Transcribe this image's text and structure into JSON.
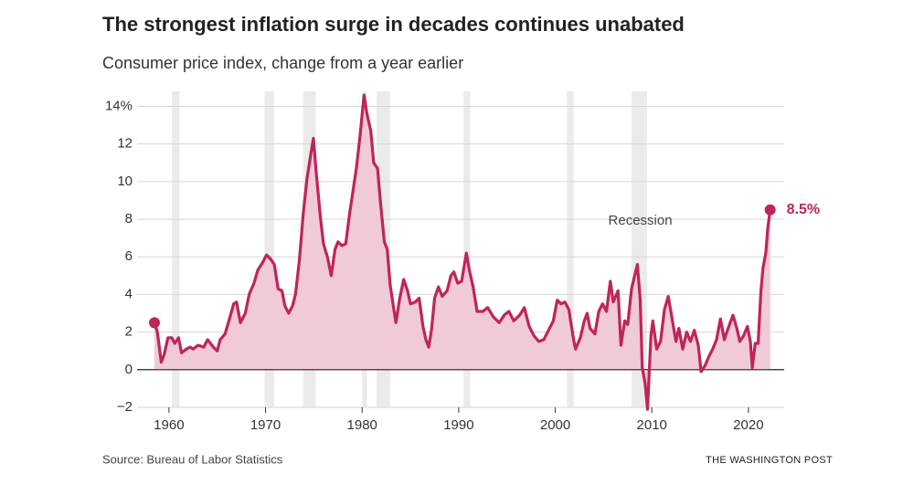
{
  "chart_data": {
    "type": "area-line",
    "title": "The strongest inflation surge in decades continues unabated",
    "subtitle": "Consumer price index, change from a year earlier",
    "source": "Source: Bureau of Labor Statistics",
    "credit": "THE WASHINGTON POST",
    "xlim": [
      1956.7,
      2023.7
    ],
    "xticks": [
      1960,
      1970,
      1980,
      1990,
      2000,
      2010,
      2020
    ],
    "ylim": [
      -2,
      14.8
    ],
    "yticks": [
      {
        "value": -2,
        "label": "−2"
      },
      0,
      2,
      4,
      6,
      8,
      10,
      12,
      {
        "value": 14,
        "label": "14%"
      }
    ],
    "grid": true,
    "recession_color": "#ebebeb",
    "recessions": [
      [
        1960.3,
        1961.1
      ],
      [
        1969.9,
        1970.9
      ],
      [
        1973.9,
        1975.2
      ],
      [
        1980.0,
        1980.5
      ],
      [
        1981.5,
        1982.9
      ],
      [
        1990.5,
        1991.2
      ],
      [
        2001.2,
        2001.9
      ],
      [
        2007.9,
        2009.5
      ]
    ],
    "annotations": [
      {
        "text": "Recession",
        "x": 2008.8,
        "y": 7.9
      },
      {
        "text": "8.5%",
        "x": 2022.25,
        "y": 8.5
      }
    ],
    "series": [
      {
        "name": "Consumer price index",
        "color": "#bf2556",
        "fill": "#f0cad6",
        "x": [
          1958.5,
          1958.8,
          1959.2,
          1959.5,
          1959.9,
          1960.3,
          1960.6,
          1961.0,
          1961.3,
          1961.8,
          1962.2,
          1962.5,
          1963.0,
          1963.6,
          1964.0,
          1964.6,
          1965.0,
          1965.3,
          1965.8,
          1966.2,
          1966.7,
          1967.0,
          1967.4,
          1967.9,
          1968.3,
          1968.8,
          1969.2,
          1969.7,
          1970.1,
          1970.5,
          1970.9,
          1971.3,
          1971.7,
          1972.0,
          1972.4,
          1972.8,
          1973.1,
          1973.5,
          1973.9,
          1974.3,
          1974.7,
          1974.95,
          1975.3,
          1975.7,
          1976.0,
          1976.4,
          1976.8,
          1977.2,
          1977.5,
          1977.9,
          1978.3,
          1978.7,
          1979.0,
          1979.4,
          1979.8,
          1980.2,
          1980.5,
          1980.9,
          1981.2,
          1981.6,
          1981.9,
          1982.3,
          1982.6,
          1982.9,
          1983.2,
          1983.5,
          1983.9,
          1984.3,
          1984.7,
          1985.0,
          1985.5,
          1985.9,
          1986.3,
          1986.6,
          1986.9,
          1987.2,
          1987.5,
          1987.9,
          1988.3,
          1988.8,
          1989.2,
          1989.5,
          1989.9,
          1990.3,
          1990.8,
          1991.1,
          1991.5,
          1991.9,
          1992.5,
          1993.0,
          1993.6,
          1994.2,
          1994.7,
          1995.2,
          1995.7,
          1996.3,
          1996.8,
          1997.3,
          1997.8,
          1998.3,
          1998.8,
          1999.3,
          1999.8,
          2000.2,
          2000.6,
          2001.0,
          2001.4,
          2001.9,
          2002.1,
          2002.6,
          2003.0,
          2003.3,
          2003.6,
          2004.1,
          2004.5,
          2004.9,
          2005.3,
          2005.7,
          2006.0,
          2006.5,
          2006.8,
          2007.2,
          2007.5,
          2007.9,
          2008.5,
          2008.8,
          2009.0,
          2009.3,
          2009.55,
          2009.9,
          2010.1,
          2010.5,
          2010.9,
          2011.3,
          2011.7,
          2012.1,
          2012.5,
          2012.8,
          2013.2,
          2013.6,
          2014.0,
          2014.4,
          2014.8,
          2015.1,
          2015.5,
          2015.9,
          2016.3,
          2016.7,
          2017.1,
          2017.5,
          2017.9,
          2018.4,
          2018.8,
          2019.1,
          2019.5,
          2019.9,
          2020.2,
          2020.4,
          2020.7,
          2021.0,
          2021.3,
          2021.5,
          2021.8,
          2022.0,
          2022.25
        ],
        "values": [
          2.5,
          2.0,
          0.4,
          0.8,
          1.7,
          1.7,
          1.4,
          1.7,
          0.9,
          1.1,
          1.2,
          1.1,
          1.3,
          1.2,
          1.6,
          1.2,
          1.0,
          1.6,
          1.9,
          2.6,
          3.5,
          3.6,
          2.5,
          3.0,
          4.0,
          4.6,
          5.3,
          5.7,
          6.1,
          5.9,
          5.6,
          4.3,
          4.2,
          3.4,
          3.0,
          3.4,
          4.0,
          5.8,
          8.3,
          10.2,
          11.5,
          12.3,
          10.2,
          8.0,
          6.7,
          6.0,
          5.0,
          6.4,
          6.8,
          6.6,
          6.7,
          8.3,
          9.3,
          10.7,
          12.5,
          14.6,
          13.6,
          12.7,
          11.0,
          10.7,
          8.9,
          6.8,
          6.4,
          4.5,
          3.5,
          2.5,
          3.8,
          4.8,
          4.2,
          3.5,
          3.6,
          3.8,
          2.3,
          1.6,
          1.2,
          2.2,
          3.8,
          4.4,
          3.9,
          4.2,
          5.0,
          5.2,
          4.6,
          4.7,
          6.2,
          5.3,
          4.4,
          3.1,
          3.1,
          3.3,
          2.8,
          2.5,
          2.9,
          3.1,
          2.6,
          2.9,
          3.3,
          2.3,
          1.8,
          1.5,
          1.6,
          2.1,
          2.6,
          3.7,
          3.5,
          3.6,
          3.2,
          1.6,
          1.1,
          1.7,
          2.6,
          3.0,
          2.2,
          1.9,
          3.1,
          3.5,
          3.1,
          4.7,
          3.6,
          4.2,
          1.3,
          2.6,
          2.4,
          4.3,
          5.6,
          3.7,
          0.1,
          -0.7,
          -2.1,
          1.8,
          2.6,
          1.1,
          1.5,
          3.2,
          3.9,
          2.7,
          1.5,
          2.2,
          1.1,
          2.0,
          1.5,
          2.1,
          1.3,
          -0.1,
          0.2,
          0.7,
          1.1,
          1.6,
          2.7,
          1.6,
          2.2,
          2.9,
          2.2,
          1.5,
          1.8,
          2.3,
          1.5,
          0.1,
          1.4,
          1.4,
          4.2,
          5.4,
          6.2,
          7.5,
          8.5
        ]
      }
    ]
  }
}
